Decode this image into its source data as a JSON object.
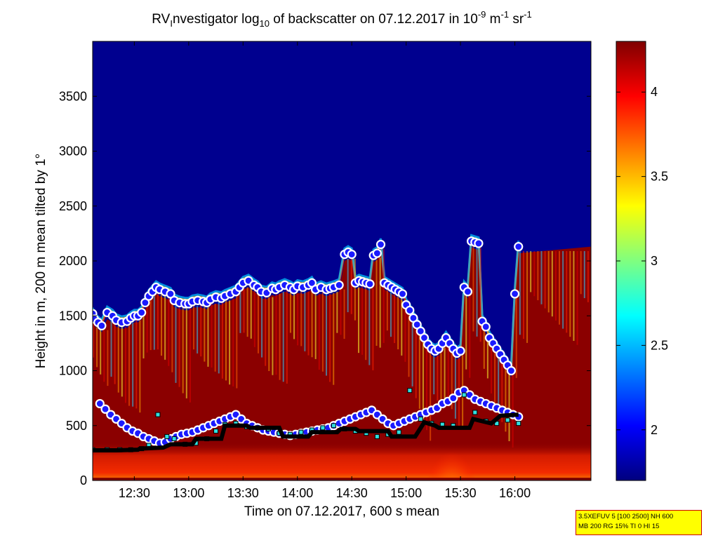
{
  "chart_data": {
    "type": "heatmap",
    "title_parts": {
      "prefix": "RV",
      "sub1": "I",
      "mid1": "nvestigator log",
      "sub2": "10",
      "mid2": " of backscatter on 07.12.2017 in 10",
      "sup1": "-9",
      "mid3": " m",
      "sup2": "-1",
      "mid4": " sr",
      "sup3": "-1"
    },
    "xlabel": "Time on 07.12.2017, 600 s mean",
    "ylabel": "Height in m, 200 m mean tilted by 1°",
    "x_ticks": [
      "12:30",
      "13:00",
      "13:30",
      "14:00",
      "14:30",
      "15:00",
      "15:30",
      "16:00"
    ],
    "x_tick_minutes": [
      750,
      780,
      810,
      840,
      870,
      900,
      930,
      960
    ],
    "xlim_minutes": [
      727,
      1002
    ],
    "y_ticks": [
      "0",
      "500",
      "1000",
      "1500",
      "2000",
      "2500",
      "3000",
      "3500"
    ],
    "y_tick_values": [
      0,
      500,
      1000,
      1500,
      2000,
      2500,
      3000,
      3500
    ],
    "ylim": [
      0,
      4000
    ],
    "colorbar": {
      "ticks": [
        "2",
        "2.5",
        "3",
        "3.5",
        "4"
      ],
      "tick_values": [
        2,
        2.5,
        3,
        3.5,
        4
      ],
      "range": [
        1.7,
        4.3
      ],
      "colormap": "jet"
    },
    "series": [
      {
        "marker": "circle",
        "color": "#1a1aff",
        "edge": "#ffffff",
        "x_minutes": [
          727,
          728,
          730,
          732,
          735,
          738,
          740,
          743,
          746,
          748,
          750,
          752,
          754,
          756,
          758,
          760,
          762,
          764,
          767,
          770,
          772,
          775,
          778,
          780,
          782,
          785,
          788,
          790,
          792,
          795,
          798,
          800,
          803,
          806,
          808,
          810,
          813,
          816,
          818,
          820,
          823,
          826,
          828,
          830,
          833,
          836,
          838,
          840,
          843,
          846,
          848,
          850,
          853,
          856,
          858,
          860,
          863,
          866,
          868,
          870,
          872,
          874,
          876,
          878,
          880,
          882,
          884,
          886,
          888,
          890,
          892,
          894,
          896,
          898,
          900,
          902,
          904,
          906,
          908,
          910,
          912,
          914,
          916,
          918,
          920,
          922,
          924,
          926,
          928,
          930,
          932,
          934,
          936,
          938,
          940,
          942,
          944,
          946,
          948,
          950,
          952,
          954,
          956,
          958,
          960,
          962
        ],
        "y_values": [
          1520,
          1470,
          1440,
          1410,
          1530,
          1500,
          1460,
          1440,
          1450,
          1480,
          1500,
          1500,
          1530,
          1620,
          1680,
          1720,
          1760,
          1740,
          1720,
          1700,
          1640,
          1620,
          1610,
          1610,
          1630,
          1640,
          1630,
          1620,
          1650,
          1670,
          1660,
          1680,
          1700,
          1720,
          1760,
          1800,
          1820,
          1780,
          1760,
          1720,
          1710,
          1750,
          1740,
          1760,
          1780,
          1760,
          1740,
          1770,
          1760,
          1780,
          1800,
          1740,
          1760,
          1740,
          1750,
          1760,
          1780,
          2060,
          2080,
          2060,
          1800,
          1820,
          1810,
          1800,
          1790,
          2050,
          2070,
          2150,
          1800,
          1780,
          1760,
          1740,
          1720,
          1700,
          1600,
          1550,
          1480,
          1420,
          1360,
          1300,
          1240,
          1200,
          1180,
          1200,
          1250,
          1300,
          1250,
          1200,
          1160,
          1180,
          1760,
          1720,
          2180,
          2170,
          2160,
          1450,
          1400,
          1300,
          1250,
          1200,
          1150,
          1100,
          1050,
          1000,
          1700,
          2130
        ]
      },
      {
        "marker": "circle",
        "color": "#1a1aff",
        "edge": "#ffffff",
        "x_minutes": [
          731,
          734,
          737,
          740,
          743,
          746,
          749,
          752,
          755,
          758,
          761,
          764,
          767,
          770,
          773,
          776,
          779,
          782,
          785,
          788,
          791,
          794,
          797,
          800,
          803,
          806,
          809,
          812,
          815,
          818,
          821,
          824,
          827,
          830,
          833,
          836,
          839,
          842,
          845,
          848,
          851,
          854,
          857,
          860,
          863,
          866,
          869,
          872,
          875,
          878,
          881,
          884,
          887,
          890,
          893,
          896,
          899,
          902,
          905,
          908,
          911,
          914,
          917,
          920,
          923,
          926,
          929,
          932,
          935,
          938,
          941,
          944,
          947,
          950,
          953,
          956,
          959,
          962
        ],
        "y_values": [
          700,
          650,
          600,
          560,
          520,
          480,
          450,
          430,
          400,
          380,
          360,
          340,
          350,
          380,
          400,
          420,
          430,
          440,
          460,
          480,
          500,
          520,
          540,
          560,
          580,
          600,
          560,
          520,
          500,
          480,
          460,
          450,
          440,
          430,
          420,
          410,
          420,
          430,
          440,
          450,
          460,
          470,
          480,
          500,
          520,
          540,
          560,
          580,
          600,
          620,
          640,
          600,
          560,
          520,
          500,
          520,
          540,
          560,
          580,
          600,
          620,
          640,
          660,
          700,
          720,
          750,
          800,
          820,
          780,
          740,
          720,
          700,
          680,
          660,
          640,
          620,
          600,
          580
        ]
      },
      {
        "marker": "square",
        "color": "#30e0e0",
        "edge": "#000000",
        "x_minutes": [
          727,
          735,
          742,
          748,
          754,
          758,
          763,
          768,
          772,
          778,
          784,
          790,
          795,
          800,
          806,
          812,
          818,
          824,
          830,
          836,
          842,
          848,
          854,
          860,
          866,
          872,
          878,
          884,
          890,
          896,
          902,
          908,
          914,
          920,
          926,
          932,
          938,
          944,
          950,
          956,
          962
        ],
        "y_values": [
          280,
          280,
          280,
          280,
          290,
          320,
          600,
          400,
          380,
          330,
          340,
          380,
          450,
          510,
          520,
          490,
          480,
          470,
          430,
          420,
          440,
          460,
          480,
          500,
          470,
          450,
          430,
          400,
          420,
          440,
          820,
          560,
          520,
          510,
          500,
          780,
          620,
          540,
          520,
          550,
          520
        ]
      },
      {
        "marker": "line",
        "color": "#000000",
        "x_minutes": [
          727,
          740,
          752,
          753,
          766,
          770,
          782,
          784,
          798,
          800,
          812,
          814,
          830,
          832,
          846,
          848,
          862,
          864,
          872,
          874,
          890,
          892,
          905,
          910,
          916,
          918,
          935,
          937,
          947,
          952,
          962
        ],
        "y_values": [
          275,
          275,
          280,
          290,
          300,
          330,
          330,
          380,
          380,
          500,
          500,
          480,
          480,
          400,
          400,
          440,
          440,
          470,
          470,
          450,
          450,
          400,
          400,
          530,
          500,
          480,
          480,
          560,
          520,
          590,
          600
        ]
      }
    ]
  },
  "annotation": {
    "line1": "3.5XEFUV 5 [100 2500] NH 600",
    "line2": "MB 200 RG 15% TI 0 HI 15"
  }
}
